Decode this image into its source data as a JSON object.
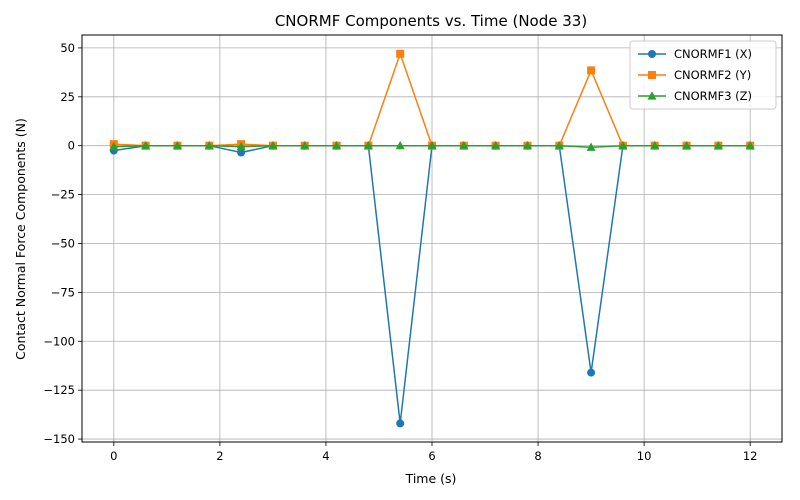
{
  "chart_data": {
    "type": "line",
    "title": "CNORMF Components vs. Time (Node 33)",
    "xlabel": "Time (s)",
    "ylabel": "Contact Normal Force Components (N)",
    "xlim": [
      -0.6,
      12.6
    ],
    "ylim": [
      -151.5,
      56.6
    ],
    "xticks": [
      0,
      2,
      4,
      6,
      8,
      10,
      12
    ],
    "yticks": [
      -150,
      -125,
      -100,
      -75,
      -50,
      -25,
      0,
      25,
      50
    ],
    "grid": true,
    "legend_position": "top-right",
    "x": [
      0,
      0.6,
      1.2,
      1.8,
      2.4,
      3.0,
      3.6,
      4.2,
      4.8,
      5.4,
      6.0,
      6.6,
      7.2,
      7.8,
      8.4,
      9.0,
      9.6,
      10.2,
      10.8,
      11.4,
      12.0
    ],
    "series": [
      {
        "name": "CNORMF1 (X)",
        "color": "#1f77b4",
        "marker": "circle",
        "values": [
          -2.5,
          0,
          0,
          0,
          -3.5,
          0,
          0,
          0,
          0,
          -142,
          0,
          0,
          0,
          0,
          0,
          -116,
          0,
          0,
          0,
          0,
          0
        ]
      },
      {
        "name": "CNORMF2 (Y)",
        "color": "#ff7f0e",
        "marker": "square",
        "values": [
          0.8,
          0,
          0,
          0,
          0.8,
          0,
          0,
          0,
          0,
          47,
          0,
          0,
          0,
          0,
          0,
          38.5,
          0,
          0,
          0,
          0,
          0
        ]
      },
      {
        "name": "CNORMF3 (Z)",
        "color": "#2ca02c",
        "marker": "triangle",
        "values": [
          -0.5,
          0,
          0,
          0,
          -0.5,
          0,
          0,
          0,
          0,
          0,
          0,
          0,
          0,
          0,
          0,
          -0.8,
          0,
          0,
          0,
          0,
          0
        ]
      }
    ]
  }
}
